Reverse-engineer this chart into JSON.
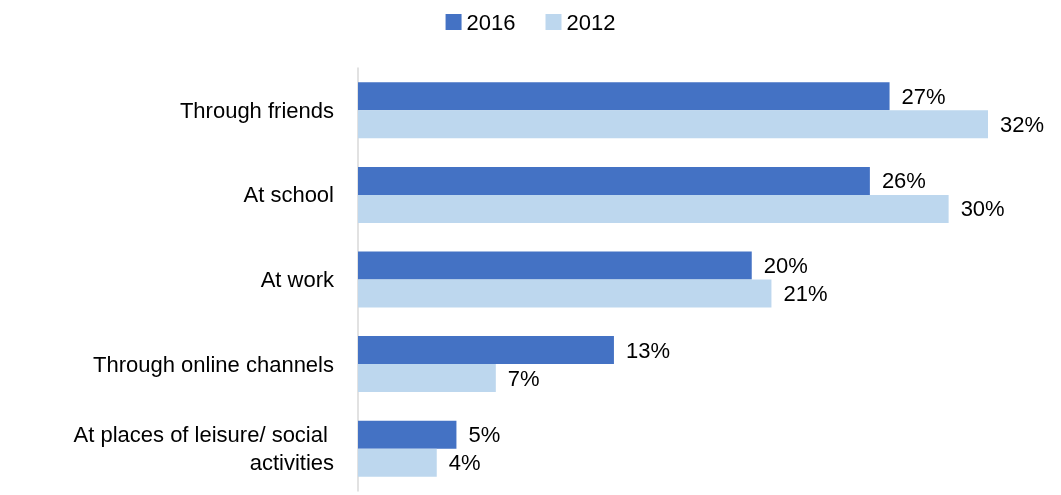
{
  "chart_data": {
    "type": "bar",
    "orientation": "horizontal",
    "categories": [
      "Through friends",
      "At school",
      "At work",
      "Through online channels",
      "At places of leisure/ social activities"
    ],
    "series": [
      {
        "name": "2016",
        "color": "#4472c4",
        "values": [
          27,
          26,
          20,
          13,
          5
        ],
        "value_labels": [
          "27%",
          "26%",
          "20%",
          "13%",
          "5%"
        ]
      },
      {
        "name": "2012",
        "color": "#bdd7ee",
        "values": [
          32,
          30,
          21,
          7,
          4
        ],
        "value_labels": [
          "32%",
          "30%",
          "21%",
          "7%",
          "4%"
        ]
      }
    ],
    "legend": "top",
    "grid": false
  }
}
